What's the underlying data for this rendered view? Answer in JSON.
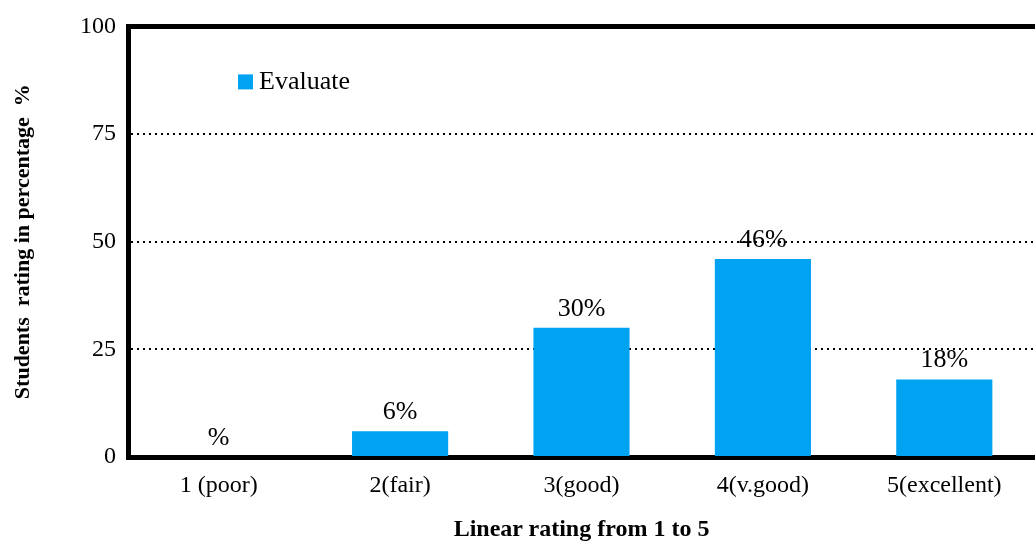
{
  "chart_data": {
    "type": "bar",
    "xlabel": "Linear rating from 1 to 5",
    "ylabel": "Students  rating in percentage  %",
    "categories": [
      "1 (poor)",
      "2(fair)",
      "3(good)",
      "4(v.good)",
      "5(excellent)"
    ],
    "series": [
      {
        "name": "Evaluate",
        "color": "#00a2f2",
        "values": [
          0,
          6,
          30,
          46,
          18
        ],
        "value_labels": [
          "%",
          "6%",
          "30%",
          "46%",
          "18%"
        ]
      }
    ],
    "ylim": [
      0,
      100
    ],
    "yticks": [
      0,
      25,
      50,
      75,
      100
    ],
    "grid": "y",
    "legend": "top left"
  }
}
